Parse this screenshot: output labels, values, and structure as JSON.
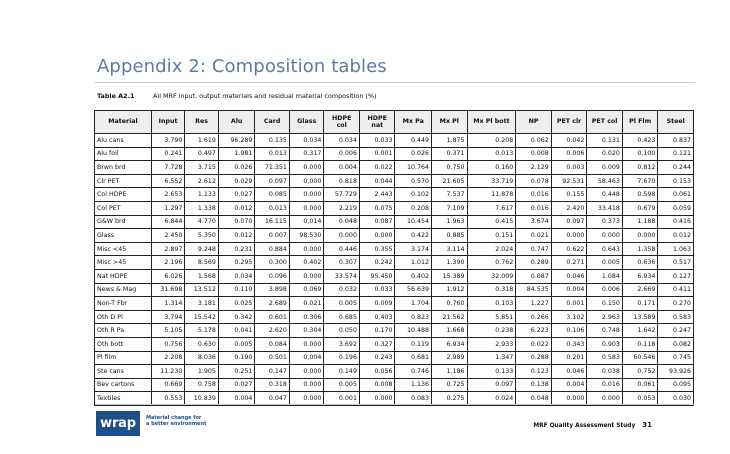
{
  "heading": "Appendix 2: Composition tables",
  "caption": {
    "number": "Table A2.1",
    "text": "All MRF input, output materials and residual material composition (%)"
  },
  "columns": [
    "Material",
    "Input",
    "Res",
    "Alu",
    "Card",
    "Glass",
    "HDPE col",
    "HDPE nat",
    "Mx Pa",
    "Mx Pl",
    "Mx Pl bott",
    "NP",
    "PET clr",
    "PET col",
    "Pl Flm",
    "Steel"
  ],
  "rows": [
    [
      "Alu cans",
      "3.790",
      "1.619",
      "96.289",
      "0.135",
      "0.034",
      "0.034",
      "0.033",
      "0.449",
      "1.875",
      "0.208",
      "0.062",
      "0.042",
      "0.131",
      "0.423",
      "0.837"
    ],
    [
      "Alu foil",
      "0.241",
      "0.497",
      "1.981",
      "0.013",
      "0.317",
      "0.006",
      "0.001",
      "0.026",
      "0.371",
      "0.013",
      "0.008",
      "0.006",
      "0.020",
      "0.100",
      "0.121"
    ],
    [
      "Brwn brd",
      "7.728",
      "3.715",
      "0.026",
      "71.351",
      "0.000",
      "0.004",
      "0.022",
      "10.764",
      "0.750",
      "0.160",
      "2.129",
      "0.003",
      "0.009",
      "0.812",
      "0.244"
    ],
    [
      "Clr PET",
      "6.552",
      "2.612",
      "0.029",
      "0.097",
      "0.000",
      "0.818",
      "0.044",
      "0.570",
      "21.605",
      "33.719",
      "0.078",
      "92.531",
      "58.463",
      "7.670",
      "0.153"
    ],
    [
      "Col HDPE",
      "2.653",
      "1.133",
      "0.027",
      "0.085",
      "0.000",
      "57.729",
      "2.443",
      "0.102",
      "7.537",
      "11.878",
      "0.016",
      "0.155",
      "0.448",
      "0.598",
      "0.061"
    ],
    [
      "Col PET",
      "1.297",
      "1.338",
      "0.012",
      "0.013",
      "0.000",
      "2.219",
      "0.075",
      "0.208",
      "7.109",
      "7.617",
      "0.016",
      "2.420",
      "33.418",
      "0.679",
      "0.059"
    ],
    [
      "G&W brd",
      "6.844",
      "4.770",
      "0.070",
      "16.115",
      "0.014",
      "0.048",
      "0.087",
      "10.454",
      "1.963",
      "0.415",
      "3.674",
      "0.097",
      "0.373",
      "1.188",
      "0.416"
    ],
    [
      "Glass",
      "2.450",
      "5.350",
      "0.012",
      "0.007",
      "98.530",
      "0.000",
      "0.000",
      "0.422",
      "0.885",
      "0.151",
      "0.021",
      "0.000",
      "0.000",
      "0.000",
      "0.012"
    ],
    [
      "Misc <45",
      "2.897",
      "9.248",
      "0.231",
      "0.884",
      "0.000",
      "0.446",
      "0.355",
      "3.174",
      "3.114",
      "2.024",
      "0.747",
      "0.622",
      "0.643",
      "1.358",
      "1.063"
    ],
    [
      "Misc >45",
      "2.196",
      "8.569",
      "0.295",
      "0.300",
      "0.402",
      "0.307",
      "0.242",
      "1.012",
      "1.390",
      "0.762",
      "0.289",
      "0.271",
      "0.005",
      "0.636",
      "0.517"
    ],
    [
      "Nat HDPE",
      "6.026",
      "1.568",
      "0.034",
      "0.096",
      "0.000",
      "33.574",
      "95.450",
      "0.402",
      "15.389",
      "32.009",
      "0.087",
      "0.046",
      "1.084",
      "6.934",
      "0.127"
    ],
    [
      "News & Mag",
      "31.698",
      "13.512",
      "0.110",
      "3.898",
      "0.069",
      "0.032",
      "0.033",
      "56.639",
      "1.912",
      "0.318",
      "84.535",
      "0.004",
      "0.006",
      "2.669",
      "0.411"
    ],
    [
      "Non-T Fbr",
      "1.314",
      "3.181",
      "0.025",
      "2.689",
      "0.021",
      "0.005",
      "0.009",
      "1.704",
      "0.760",
      "0.103",
      "1.227",
      "0.001",
      "0.150",
      "0.171",
      "0.270"
    ],
    [
      "Oth D Pl",
      "3.794",
      "15.542",
      "0.342",
      "0.601",
      "0.306",
      "0.685",
      "0.403",
      "0.823",
      "21.562",
      "5.851",
      "0.266",
      "3.102",
      "2.963",
      "13.589",
      "0.583"
    ],
    [
      "Oth R Pa",
      "5.105",
      "5.178",
      "0.041",
      "2.620",
      "0.304",
      "0.050",
      "0.170",
      "10.488",
      "1.668",
      "0.238",
      "6.223",
      "0.106",
      "0.748",
      "1.642",
      "0.247"
    ],
    [
      "Oth bott",
      "0.756",
      "0.630",
      "0.005",
      "0.084",
      "0.000",
      "3.692",
      "0.327",
      "0.119",
      "6.934",
      "2.933",
      "0.022",
      "0.343",
      "0.903",
      "0.118",
      "0.082"
    ],
    [
      "Pl film",
      "2.208",
      "8.036",
      "0.190",
      "0.501",
      "0.004",
      "0.196",
      "0.243",
      "0.681",
      "2.989",
      "1.347",
      "0.288",
      "0.201",
      "0.583",
      "60.546",
      "0.745"
    ],
    [
      "Ste cans",
      "11.230",
      "1.905",
      "0.251",
      "0.147",
      "0.000",
      "0.149",
      "0.056",
      "0.746",
      "1.186",
      "0.133",
      "0.123",
      "0.046",
      "0.038",
      "0.752",
      "93.926"
    ],
    [
      "Bev cartons",
      "0.669",
      "0.758",
      "0.027",
      "0.318",
      "0.000",
      "0.005",
      "0.008",
      "1.136",
      "0.725",
      "0.097",
      "0.138",
      "0.004",
      "0.016",
      "0.061",
      "0.095"
    ],
    [
      "Textiles",
      "0.553",
      "10.839",
      "0.004",
      "0.047",
      "0.000",
      "0.001",
      "0.000",
      "0.083",
      "0.275",
      "0.024",
      "0.048",
      "0.000",
      "0.000",
      "0.053",
      "0.030"
    ]
  ],
  "footer": {
    "logo": "wrap",
    "tagline_line1": "Material change for",
    "tagline_line2": "a better environment",
    "study": "MRF Quality Assessment Study",
    "page": "31"
  },
  "colors": {
    "heading": "#5a7ba6",
    "logo": "#1d4f8a",
    "header_bg": "#eeeeee"
  }
}
